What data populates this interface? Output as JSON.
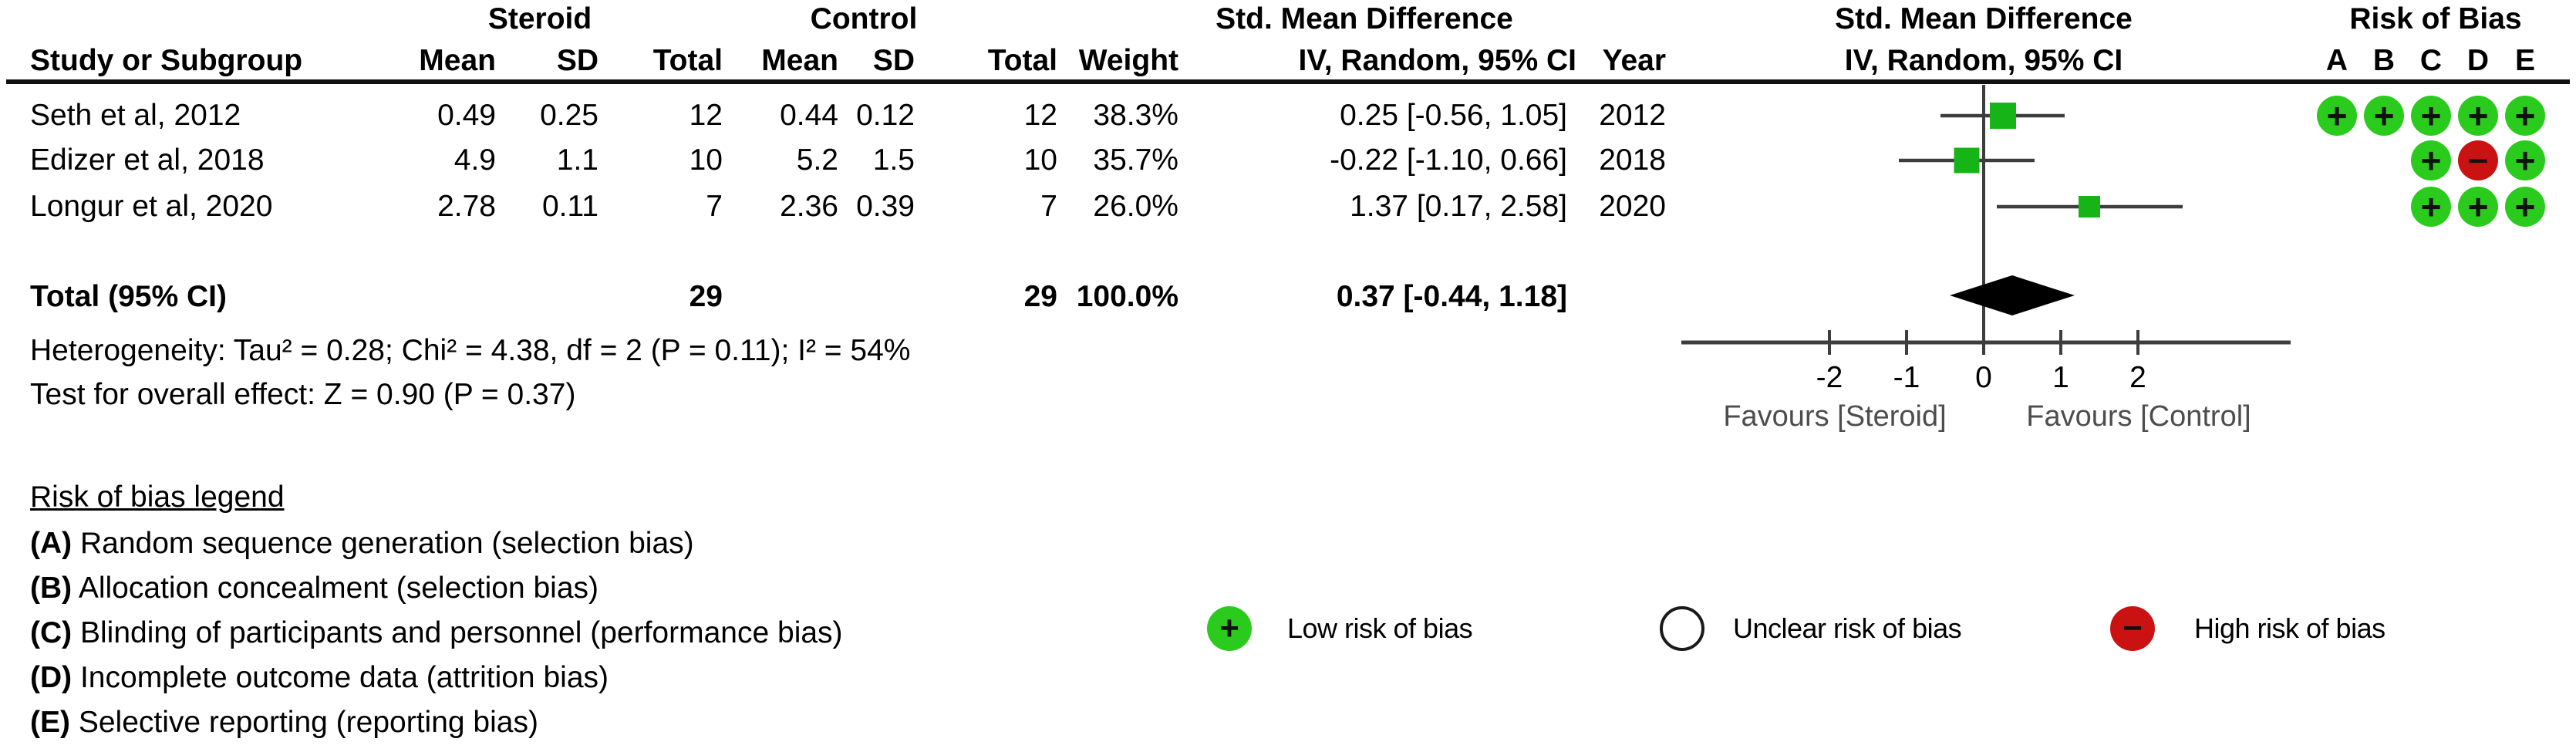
{
  "colors": {
    "low_risk_green": "#2BCB1E",
    "square_green": "#17B417",
    "high_risk_red": "#CB1213",
    "unclear_white": "#FFFFFF",
    "line_gray": "#3D3D3D",
    "diamond_black": "#000000",
    "favours_text": "#4D4D4D"
  },
  "table": {
    "group_steroid": "Steroid",
    "group_control": "Control",
    "group_smd": "Std. Mean Difference",
    "col_study": "Study or Subgroup",
    "col_mean": "Mean",
    "col_sd": "SD",
    "col_total": "Total",
    "col_weight": "Weight",
    "col_iv": "IV, Random, 95% CI",
    "col_year": "Year",
    "rows": [
      {
        "study": "Seth et al, 2012",
        "mean1": "0.49",
        "sd1": "0.25",
        "total1": "12",
        "mean2": "0.44",
        "sd2": "0.12",
        "total2": "12",
        "weight": "38.3%",
        "ci": "0.25 [-0.56, 1.05]",
        "year": "2012"
      },
      {
        "study": "Edizer et al, 2018",
        "mean1": "4.9",
        "sd1": "1.1",
        "total1": "10",
        "mean2": "5.2",
        "sd2": "1.5",
        "total2": "10",
        "weight": "35.7%",
        "ci": "-0.22 [-1.10, 0.66]",
        "year": "2018"
      },
      {
        "study": "Longur et al, 2020",
        "mean1": "2.78",
        "sd1": "0.11",
        "total1": "7",
        "mean2": "2.36",
        "sd2": "0.39",
        "total2": "7",
        "weight": "26.0%",
        "ci": "1.37 [0.17, 2.58]",
        "year": "2020"
      }
    ],
    "total_label": "Total (95% CI)",
    "total_n1": "29",
    "total_n2": "29",
    "total_weight": "100.0%",
    "total_ci": "0.37 [-0.44, 1.18]",
    "heterogeneity": "Heterogeneity: Tau² = 0.28; Chi² = 4.38, df = 2 (P = 0.11); I² = 54%",
    "overall": "Test for overall effect: Z = 0.90 (P = 0.37)"
  },
  "plot": {
    "header1": "Std. Mean Difference",
    "header2": "IV, Random, 95% CI",
    "favours_left": "Favours [Steroid]",
    "favours_right": "Favours [Control]"
  },
  "rob": {
    "header": "Risk of Bias",
    "letters": [
      "A",
      "B",
      "C",
      "D",
      "E"
    ],
    "symbols": {
      "low": "+",
      "high": "−"
    }
  },
  "rob_legend": {
    "title": "Risk of bias legend",
    "items": [
      {
        "label": "(A)",
        "text": " Random sequence generation (selection bias)"
      },
      {
        "label": "(B)",
        "text": " Allocation concealment (selection bias)"
      },
      {
        "label": "(C)",
        "text": " Blinding of participants and personnel (performance bias)"
      },
      {
        "label": "(D)",
        "text": " Incomplete outcome data (attrition bias)"
      },
      {
        "label": "(E)",
        "text": " Selective reporting (reporting bias)"
      }
    ]
  },
  "status_legend": {
    "low": "Low risk of bias",
    "unclear": "Unclear risk of bias",
    "high": "High risk of bias"
  },
  "chart_data": {
    "type": "forest",
    "effect_measure": "Std. Mean Difference",
    "method": "IV, Random, 95% CI",
    "studies": [
      {
        "name": "Seth et al, 2012",
        "smd": 0.25,
        "ci_low": -0.56,
        "ci_high": 1.05,
        "weight": 38.3,
        "year": 2012,
        "risk_of_bias": [
          "low",
          "low",
          "low",
          "low",
          "low"
        ]
      },
      {
        "name": "Edizer et al, 2018",
        "smd": -0.22,
        "ci_low": -1.1,
        "ci_high": 0.66,
        "weight": 35.7,
        "year": 2018,
        "risk_of_bias": [
          null,
          null,
          "low",
          "high",
          "low"
        ]
      },
      {
        "name": "Longur et al, 2020",
        "smd": 1.37,
        "ci_low": 0.17,
        "ci_high": 2.58,
        "weight": 26.0,
        "year": 2020,
        "risk_of_bias": [
          null,
          null,
          "low",
          "low",
          "low"
        ]
      }
    ],
    "total": {
      "n_steroid": 29,
      "n_control": 29,
      "weight": 100.0,
      "smd": 0.37,
      "ci_low": -0.44,
      "ci_high": 1.18
    },
    "heterogeneity": {
      "tau2": 0.28,
      "chi2": 4.38,
      "df": 2,
      "p": 0.11,
      "i2": "54%"
    },
    "overall_effect": {
      "z": 0.9,
      "p": 0.37
    },
    "axis": {
      "min": -4,
      "max": 4,
      "ticks": [
        -2,
        -1,
        0,
        1,
        2
      ],
      "tick_labels": [
        "-2",
        "-1",
        "0",
        "1",
        "2"
      ]
    },
    "favours": [
      "Favours [Steroid]",
      "Favours [Control]"
    ]
  }
}
